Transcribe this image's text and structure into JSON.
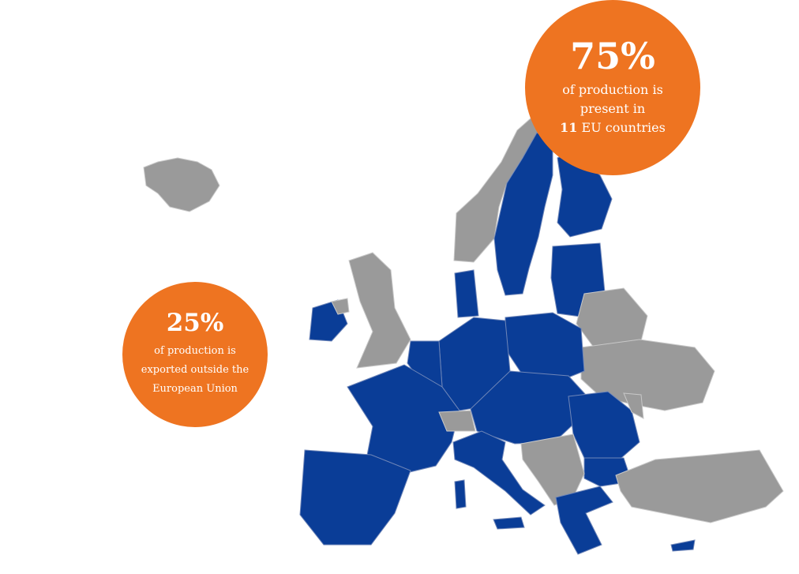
{
  "colors": {
    "eu_member": "#0a3d97",
    "non_eu": "#9a9a9a",
    "callout": "#ee7421"
  },
  "callouts": [
    {
      "value": "75%",
      "lines": [
        "of production is",
        "present in"
      ],
      "count": "11",
      "count_suffix": " EU countries"
    },
    {
      "value": "25%",
      "lines": [
        "of production is",
        "exported outside the",
        "European Union"
      ]
    }
  ]
}
